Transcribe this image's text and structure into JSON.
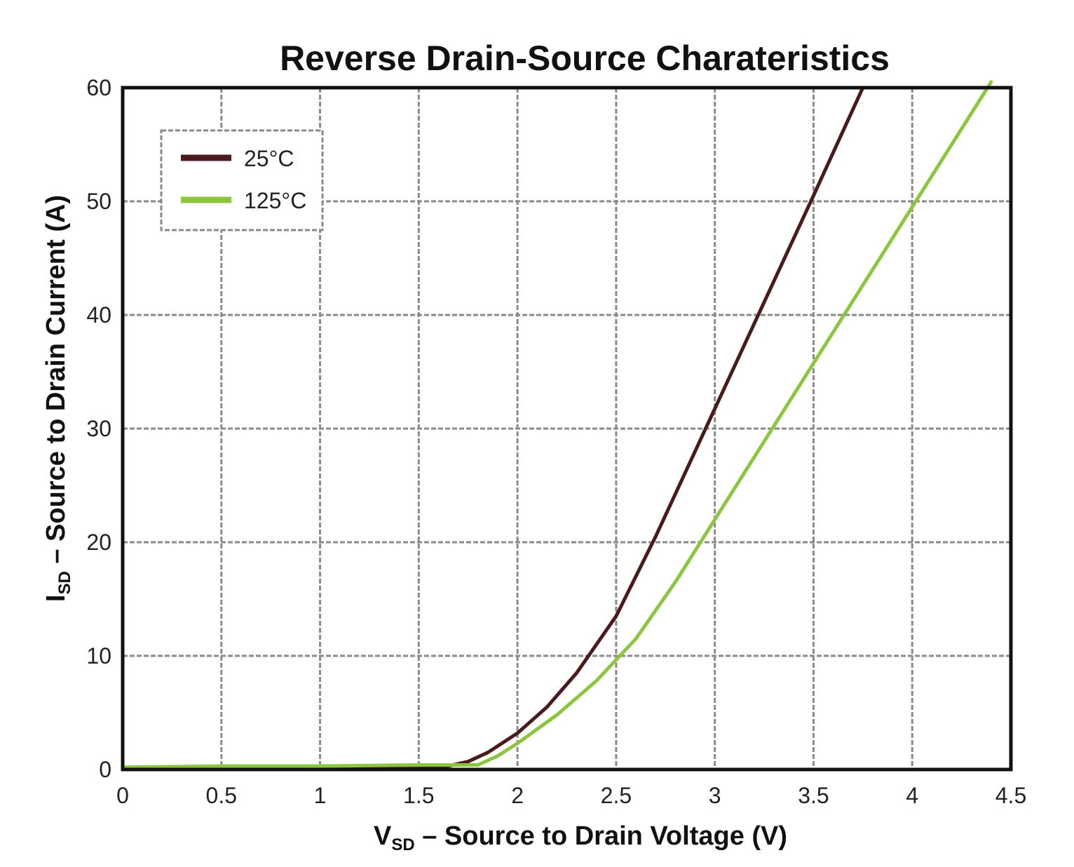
{
  "chart_data": {
    "type": "line",
    "title": "Reverse Drain-Source Charateristics",
    "xlabel": {
      "main": "V",
      "sub": "SD",
      "rest": " – Source to Drain Voltage (V)"
    },
    "ylabel": {
      "main": "I",
      "sub": "SD",
      "rest": " – Source to Drain Current (A)"
    },
    "xlim": [
      0,
      4.5
    ],
    "ylim": [
      0,
      60
    ],
    "xticks": [
      "0",
      "0.5",
      "1",
      "1.5",
      "2",
      "2.5",
      "3",
      "3.5",
      "4",
      "4.5"
    ],
    "yticks": [
      "0",
      "10",
      "20",
      "30",
      "40",
      "50",
      "60"
    ],
    "grid": true,
    "legend_position": "top-left",
    "series": [
      {
        "name": "25°C",
        "color": "#4a1a1c",
        "x": [
          0,
          0.5,
          1.0,
          1.5,
          1.65,
          1.75,
          1.85,
          2.0,
          2.15,
          2.3,
          2.5,
          2.7,
          2.9,
          3.1,
          3.3,
          3.5,
          3.75
        ],
        "y": [
          0.1,
          0.2,
          0.2,
          0.3,
          0.3,
          0.7,
          1.5,
          3.2,
          5.5,
          8.5,
          13.5,
          20.5,
          28,
          35.5,
          43,
          50.5,
          60
        ]
      },
      {
        "name": "125°C",
        "color": "#8cc63f",
        "x": [
          0,
          0.5,
          1.0,
          1.5,
          1.8,
          1.9,
          2.0,
          2.2,
          2.4,
          2.6,
          2.8,
          3.0,
          3.2,
          3.4,
          3.6,
          3.8,
          4.0,
          4.2,
          4.4
        ],
        "y": [
          0.2,
          0.3,
          0.3,
          0.4,
          0.4,
          1.2,
          2.3,
          4.8,
          7.8,
          11.5,
          16.5,
          22,
          27.5,
          33,
          38.5,
          44,
          49.5,
          55,
          60.5
        ]
      }
    ]
  }
}
